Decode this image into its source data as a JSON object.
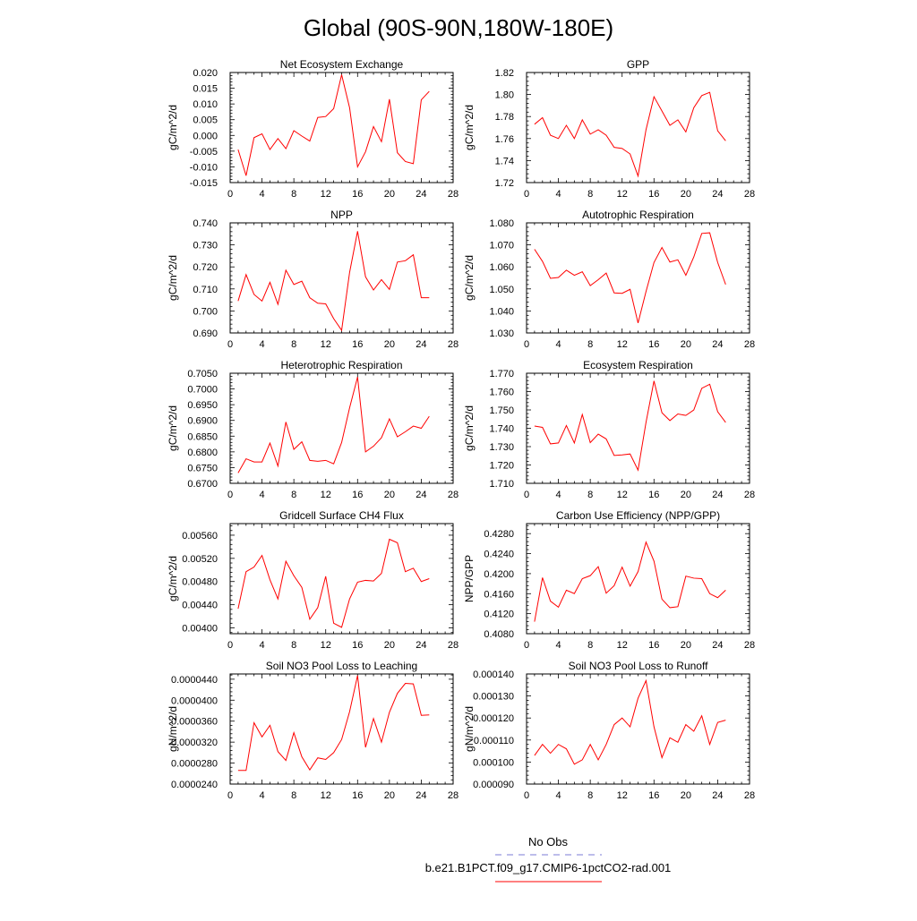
{
  "page_title": "Global (90S-90N,180W-180E)",
  "legend": {
    "items": [
      {
        "label": "No Obs",
        "color": "#7b7bd6",
        "style": "dashed"
      },
      {
        "label": "b.e21.B1PCT.f09_g17.CMIP6-1pctCO2-rad.001",
        "color": "#ff0000",
        "style": "solid"
      }
    ]
  },
  "chart_data": [
    {
      "type": "line",
      "title": "Net Ecosystem Exchange",
      "ylabel": "gC/m^2/d",
      "xlim": [
        0,
        28
      ],
      "ylim": [
        -0.015,
        0.02
      ],
      "yticks": [
        "0.020",
        "0.015",
        "0.010",
        "0.005",
        "0.000",
        "-0.005",
        "-0.010",
        "-0.015"
      ],
      "xticks": [
        "0",
        "4",
        "8",
        "12",
        "16",
        "20",
        "24",
        "28"
      ],
      "series": [
        {
          "color": "#ff0000",
          "x": [
            1,
            2,
            3,
            4,
            5,
            6,
            7,
            8,
            9,
            10,
            11,
            12,
            13,
            14,
            15,
            16,
            17,
            18,
            19,
            20,
            21,
            22,
            23,
            24,
            25
          ],
          "y": [
            -0.0045,
            -0.0128,
            -0.0007,
            0.0005,
            -0.0045,
            -0.001,
            -0.0042,
            0.0015,
            -0.0002,
            -0.0018,
            0.0057,
            0.006,
            0.0085,
            0.0193,
            0.0088,
            -0.01,
            -0.0052,
            0.0028,
            -0.002,
            0.0115,
            -0.0055,
            -0.0083,
            -0.009,
            0.0113,
            0.014
          ]
        }
      ]
    },
    {
      "type": "line",
      "title": "GPP",
      "ylabel": "gC/m^2/d",
      "xlim": [
        0,
        28
      ],
      "ylim": [
        1.72,
        1.82
      ],
      "yticks": [
        "1.82",
        "1.80",
        "1.78",
        "1.76",
        "1.74",
        "1.72"
      ],
      "xticks": [
        "0",
        "4",
        "8",
        "12",
        "16",
        "20",
        "24",
        "28"
      ],
      "series": [
        {
          "color": "#ff0000",
          "x": [
            1,
            2,
            3,
            4,
            5,
            6,
            7,
            8,
            9,
            10,
            11,
            12,
            13,
            14,
            15,
            16,
            17,
            18,
            19,
            20,
            21,
            22,
            23,
            24,
            25
          ],
          "y": [
            1.773,
            1.779,
            1.763,
            1.76,
            1.772,
            1.76,
            1.777,
            1.764,
            1.768,
            1.763,
            1.752,
            1.751,
            1.746,
            1.726,
            1.768,
            1.798,
            1.785,
            1.772,
            1.777,
            1.766,
            1.788,
            1.799,
            1.802,
            1.767,
            1.758
          ]
        }
      ]
    },
    {
      "type": "line",
      "title": "NPP",
      "ylabel": "gC/m^2/d",
      "xlim": [
        0,
        28
      ],
      "ylim": [
        0.69,
        0.74
      ],
      "yticks": [
        "0.740",
        "0.730",
        "0.720",
        "0.710",
        "0.700",
        "0.690"
      ],
      "xticks": [
        "0",
        "4",
        "8",
        "12",
        "16",
        "20",
        "24",
        "28"
      ],
      "series": [
        {
          "color": "#ff0000",
          "x": [
            1,
            2,
            3,
            4,
            5,
            6,
            7,
            8,
            9,
            10,
            11,
            12,
            13,
            14,
            15,
            16,
            17,
            18,
            19,
            20,
            21,
            22,
            23,
            24,
            25
          ],
          "y": [
            0.7045,
            0.7165,
            0.7075,
            0.7045,
            0.713,
            0.703,
            0.7185,
            0.712,
            0.7135,
            0.706,
            0.7035,
            0.7032,
            0.6965,
            0.6912,
            0.7175,
            0.7362,
            0.7155,
            0.7095,
            0.7142,
            0.7098,
            0.7222,
            0.7228,
            0.7255,
            0.706,
            0.706
          ]
        }
      ]
    },
    {
      "type": "line",
      "title": "Autotrophic Respiration",
      "ylabel": "gC/m^2/d",
      "xlim": [
        0,
        28
      ],
      "ylim": [
        1.03,
        1.08
      ],
      "yticks": [
        "1.080",
        "1.070",
        "1.060",
        "1.050",
        "1.040",
        "1.030"
      ],
      "xticks": [
        "0",
        "4",
        "8",
        "12",
        "16",
        "20",
        "24",
        "28"
      ],
      "series": [
        {
          "color": "#ff0000",
          "x": [
            1,
            2,
            3,
            4,
            5,
            6,
            7,
            8,
            9,
            10,
            11,
            12,
            13,
            14,
            15,
            16,
            17,
            18,
            19,
            20,
            21,
            22,
            23,
            24,
            25
          ],
          "y": [
            1.068,
            1.0625,
            1.0548,
            1.0552,
            1.0585,
            1.0562,
            1.0578,
            1.0515,
            1.0542,
            1.0572,
            1.0482,
            1.048,
            1.0498,
            1.0345,
            1.0488,
            1.062,
            1.0688,
            1.0622,
            1.0632,
            1.0562,
            1.0645,
            1.0752,
            1.0755,
            1.062,
            1.052
          ]
        }
      ]
    },
    {
      "type": "line",
      "title": "Heterotrophic Respiration",
      "ylabel": "gC/m^2/d",
      "xlim": [
        0,
        28
      ],
      "ylim": [
        0.67,
        0.705
      ],
      "yticks": [
        "0.7050",
        "0.7000",
        "0.6950",
        "0.6900",
        "0.6850",
        "0.6800",
        "0.6750",
        "0.6700"
      ],
      "xticks": [
        "0",
        "4",
        "8",
        "12",
        "16",
        "20",
        "24",
        "28"
      ],
      "series": [
        {
          "color": "#ff0000",
          "x": [
            1,
            2,
            3,
            4,
            5,
            6,
            7,
            8,
            9,
            10,
            11,
            12,
            13,
            14,
            15,
            16,
            17,
            18,
            19,
            20,
            21,
            22,
            23,
            24,
            25
          ],
          "y": [
            0.6733,
            0.6778,
            0.6768,
            0.6768,
            0.6828,
            0.6755,
            0.6895,
            0.6808,
            0.6832,
            0.6773,
            0.677,
            0.6773,
            0.6762,
            0.683,
            0.694,
            0.7038,
            0.68,
            0.6818,
            0.6845,
            0.6905,
            0.6848,
            0.6864,
            0.6882,
            0.6875,
            0.6913
          ]
        }
      ]
    },
    {
      "type": "line",
      "title": "Ecosystem Respiration",
      "ylabel": "gC/m^2/d",
      "xlim": [
        0,
        28
      ],
      "ylim": [
        1.71,
        1.77
      ],
      "yticks": [
        "1.770",
        "1.760",
        "1.750",
        "1.740",
        "1.730",
        "1.720",
        "1.710"
      ],
      "xticks": [
        "0",
        "4",
        "8",
        "12",
        "16",
        "20",
        "24",
        "28"
      ],
      "series": [
        {
          "color": "#ff0000",
          "x": [
            1,
            2,
            3,
            4,
            5,
            6,
            7,
            8,
            9,
            10,
            11,
            12,
            13,
            14,
            15,
            16,
            17,
            18,
            19,
            20,
            21,
            22,
            23,
            24,
            25
          ],
          "y": [
            1.7412,
            1.7405,
            1.7315,
            1.732,
            1.7415,
            1.732,
            1.7475,
            1.7322,
            1.7368,
            1.7342,
            1.7252,
            1.7255,
            1.726,
            1.7172,
            1.7432,
            1.7658,
            1.7485,
            1.7442,
            1.7478,
            1.747,
            1.75,
            1.7618,
            1.764,
            1.749,
            1.7432
          ]
        }
      ]
    },
    {
      "type": "line",
      "title": "Gridcell Surface CH4 Flux",
      "ylabel": "gC/m^2/d",
      "xlim": [
        0,
        28
      ],
      "ylim": [
        0.0039,
        0.0058
      ],
      "yticks": [
        "0.00560",
        "0.00520",
        "0.00480",
        "0.00440",
        "0.00400"
      ],
      "xticks": [
        "0",
        "4",
        "8",
        "12",
        "16",
        "20",
        "24",
        "28"
      ],
      "series": [
        {
          "color": "#ff0000",
          "x": [
            1,
            2,
            3,
            4,
            5,
            6,
            7,
            8,
            9,
            10,
            11,
            12,
            13,
            14,
            15,
            16,
            17,
            18,
            19,
            20,
            21,
            22,
            23,
            24,
            25
          ],
          "y": [
            0.00433,
            0.00497,
            0.00505,
            0.00525,
            0.00483,
            0.0045,
            0.00515,
            0.0049,
            0.0047,
            0.00415,
            0.00435,
            0.00489,
            0.00408,
            0.00401,
            0.0045,
            0.00479,
            0.00482,
            0.00481,
            0.00494,
            0.00553,
            0.00547,
            0.00497,
            0.00503,
            0.0048,
            0.00485
          ]
        }
      ]
    },
    {
      "type": "line",
      "title": "Carbon Use Efficiency (NPP/GPP)",
      "ylabel": "NPP/GPP",
      "xlim": [
        0,
        28
      ],
      "ylim": [
        0.408,
        0.43
      ],
      "yticks": [
        "0.4280",
        "0.4240",
        "0.4200",
        "0.4160",
        "0.4120",
        "0.4080"
      ],
      "xticks": [
        "0",
        "4",
        "8",
        "12",
        "16",
        "20",
        "24",
        "28"
      ],
      "series": [
        {
          "color": "#ff0000",
          "x": [
            1,
            2,
            3,
            4,
            5,
            6,
            7,
            8,
            9,
            10,
            11,
            12,
            13,
            14,
            15,
            16,
            17,
            18,
            19,
            20,
            21,
            22,
            23,
            24,
            25
          ],
          "y": [
            0.4104,
            0.4192,
            0.4145,
            0.4133,
            0.4167,
            0.416,
            0.419,
            0.4196,
            0.4214,
            0.4161,
            0.4176,
            0.4213,
            0.4175,
            0.4204,
            0.4263,
            0.4225,
            0.4149,
            0.4132,
            0.4134,
            0.4195,
            0.4191,
            0.419,
            0.416,
            0.4152,
            0.4167
          ]
        }
      ]
    },
    {
      "type": "line",
      "title": "Soil NO3 Pool Loss to Leaching",
      "ylabel": "gN/m^2/d",
      "xlim": [
        0,
        28
      ],
      "ylim": [
        2.4e-05,
        4.5e-05
      ],
      "yticks": [
        "0.0000440",
        "0.0000400",
        "0.0000360",
        "0.0000320",
        "0.0000280",
        "0.0000240"
      ],
      "xticks": [
        "0",
        "4",
        "8",
        "12",
        "16",
        "20",
        "24",
        "28"
      ],
      "series": [
        {
          "color": "#ff0000",
          "x": [
            1,
            2,
            3,
            4,
            5,
            6,
            7,
            8,
            9,
            10,
            11,
            12,
            13,
            14,
            15,
            16,
            17,
            18,
            19,
            20,
            21,
            22,
            23,
            24,
            25
          ],
          "y": [
            2.66e-05,
            2.66e-05,
            3.57e-05,
            3.3e-05,
            3.52e-05,
            3.02e-05,
            2.85e-05,
            3.38e-05,
            2.92e-05,
            2.67e-05,
            2.9e-05,
            2.87e-05,
            3e-05,
            3.25e-05,
            3.78e-05,
            4.47e-05,
            3.1e-05,
            3.65e-05,
            3.2e-05,
            3.77e-05,
            4.13e-05,
            4.32e-05,
            4.31e-05,
            3.71e-05,
            3.72e-05
          ]
        }
      ]
    },
    {
      "type": "line",
      "title": "Soil NO3 Pool Loss to Runoff",
      "ylabel": "gN/m^2/d",
      "xlim": [
        0,
        28
      ],
      "ylim": [
        9e-05,
        0.00014
      ],
      "yticks": [
        "0.000140",
        "0.000130",
        "0.000120",
        "0.000110",
        "0.000100",
        "0.000090"
      ],
      "xticks": [
        "0",
        "4",
        "8",
        "12",
        "16",
        "20",
        "24",
        "28"
      ],
      "series": [
        {
          "color": "#ff0000",
          "x": [
            1,
            2,
            3,
            4,
            5,
            6,
            7,
            8,
            9,
            10,
            11,
            12,
            13,
            14,
            15,
            16,
            17,
            18,
            19,
            20,
            21,
            22,
            23,
            24,
            25
          ],
          "y": [
            0.000103,
            0.000108,
            0.000104,
            0.000108,
            0.000106,
            9.9e-05,
            0.000101,
            0.000108,
            0.000101,
            0.000108,
            0.000117,
            0.00012,
            0.000116,
            0.000129,
            0.000137,
            0.000116,
            0.000102,
            0.000111,
            0.000109,
            0.000117,
            0.000114,
            0.000121,
            0.000108,
            0.000118,
            0.000119
          ]
        }
      ]
    }
  ]
}
